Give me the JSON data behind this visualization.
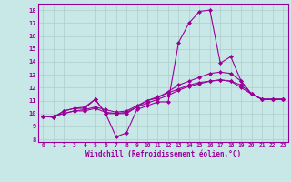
{
  "background_color": "#c8e8e8",
  "line_color": "#990099",
  "marker": "D",
  "markersize": 2,
  "linewidth": 0.8,
  "xlabel": "Windchill (Refroidissement éolien,°C)",
  "ylabel_ticks": [
    8,
    9,
    10,
    11,
    12,
    13,
    14,
    15,
    16,
    17,
    18
  ],
  "xlabel_ticks": [
    0,
    1,
    2,
    3,
    4,
    5,
    6,
    7,
    8,
    9,
    10,
    11,
    12,
    13,
    14,
    15,
    16,
    17,
    18,
    19,
    20,
    21,
    22,
    23
  ],
  "ylim": [
    7.8,
    18.5
  ],
  "xlim": [
    -0.5,
    23.5
  ],
  "series": [
    [
      9.8,
      9.7,
      10.2,
      10.4,
      10.4,
      11.1,
      10.0,
      8.2,
      8.5,
      10.3,
      10.6,
      10.9,
      10.9,
      15.5,
      17.0,
      17.9,
      18.0,
      13.9,
      14.4,
      12.5,
      11.5,
      11.1,
      11.1,
      11.1
    ],
    [
      9.8,
      9.7,
      10.2,
      10.4,
      10.5,
      11.1,
      10.0,
      10.0,
      10.0,
      10.5,
      11.0,
      11.2,
      11.7,
      12.2,
      12.5,
      12.8,
      13.1,
      13.2,
      13.1,
      12.5,
      11.5,
      11.1,
      11.1,
      11.1
    ],
    [
      9.8,
      9.8,
      10.0,
      10.2,
      10.3,
      10.5,
      10.3,
      10.1,
      10.2,
      10.6,
      11.0,
      11.3,
      11.6,
      11.9,
      12.2,
      12.4,
      12.5,
      12.6,
      12.5,
      12.2,
      11.5,
      11.1,
      11.1,
      11.1
    ],
    [
      9.8,
      9.8,
      10.0,
      10.2,
      10.2,
      10.4,
      10.1,
      10.0,
      10.1,
      10.5,
      10.8,
      11.1,
      11.4,
      11.8,
      12.1,
      12.3,
      12.5,
      12.6,
      12.5,
      12.0,
      11.5,
      11.1,
      11.1,
      11.1
    ]
  ]
}
